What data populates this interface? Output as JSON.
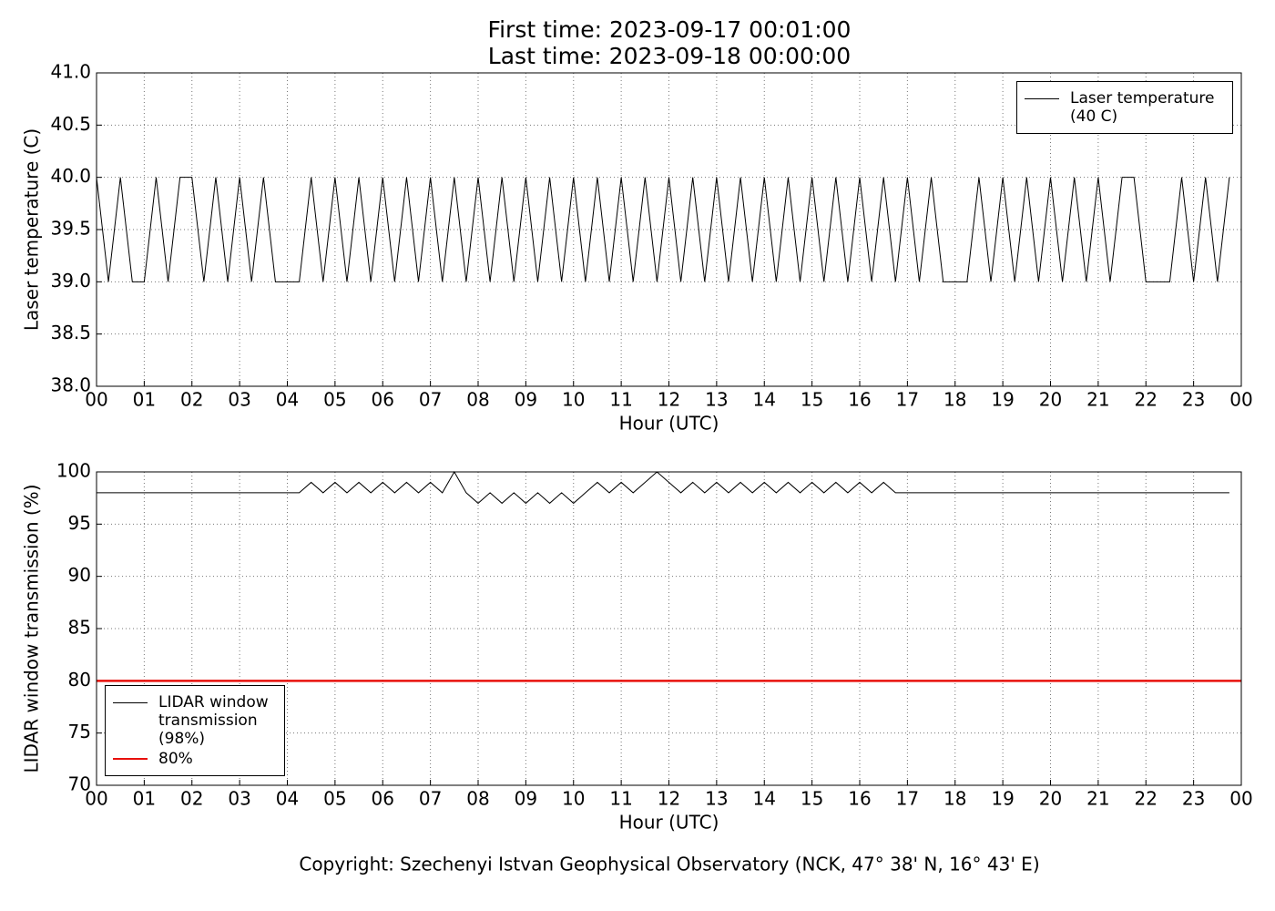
{
  "chart_data": [
    {
      "type": "line",
      "title": "First time: 2023-09-17 00:01:00",
      "subtitle": "Last time: 2023-09-18 00:00:00",
      "x_label": "Hour (UTC)",
      "y_label": "Laser temperature (C)",
      "grid": true,
      "legend": "upper right",
      "xlim": [
        0,
        24
      ],
      "xticks": [
        {
          "value": 0,
          "label": "00"
        },
        {
          "value": 1,
          "label": "01"
        },
        {
          "value": 2,
          "label": "02"
        },
        {
          "value": 3,
          "label": "03"
        },
        {
          "value": 4,
          "label": "04"
        },
        {
          "value": 5,
          "label": "05"
        },
        {
          "value": 6,
          "label": "06"
        },
        {
          "value": 7,
          "label": "07"
        },
        {
          "value": 8,
          "label": "08"
        },
        {
          "value": 9,
          "label": "09"
        },
        {
          "value": 10,
          "label": "10"
        },
        {
          "value": 11,
          "label": "11"
        },
        {
          "value": 12,
          "label": "12"
        },
        {
          "value": 13,
          "label": "13"
        },
        {
          "value": 14,
          "label": "14"
        },
        {
          "value": 15,
          "label": "15"
        },
        {
          "value": 16,
          "label": "16"
        },
        {
          "value": 17,
          "label": "17"
        },
        {
          "value": 18,
          "label": "18"
        },
        {
          "value": 19,
          "label": "19"
        },
        {
          "value": 20,
          "label": "20"
        },
        {
          "value": 21,
          "label": "21"
        },
        {
          "value": 22,
          "label": "22"
        },
        {
          "value": 23,
          "label": "23"
        },
        {
          "value": 24,
          "label": "00"
        }
      ],
      "ylim": [
        38,
        41
      ],
      "yticks": [
        {
          "value": 38,
          "label": "38.0"
        },
        {
          "value": 38.5,
          "label": "38.5"
        },
        {
          "value": 39,
          "label": "39.0"
        },
        {
          "value": 39.5,
          "label": "39.5"
        },
        {
          "value": 40,
          "label": "40.0"
        },
        {
          "value": 40.5,
          "label": "40.5"
        },
        {
          "value": 41,
          "label": "41.0"
        }
      ],
      "x": [
        0,
        0.25,
        0.5,
        0.75,
        1,
        1.25,
        1.5,
        1.75,
        2,
        2.25,
        2.5,
        2.75,
        3,
        3.25,
        3.5,
        3.75,
        4,
        4.25,
        4.5,
        4.75,
        5,
        5.25,
        5.5,
        5.75,
        6,
        6.25,
        6.5,
        6.75,
        7,
        7.25,
        7.5,
        7.75,
        8,
        8.25,
        8.5,
        8.75,
        9,
        9.25,
        9.5,
        9.75,
        10,
        10.25,
        10.5,
        10.75,
        11,
        11.25,
        11.5,
        11.75,
        12,
        12.25,
        12.5,
        12.75,
        13,
        13.25,
        13.5,
        13.75,
        14,
        14.25,
        14.5,
        14.75,
        15,
        15.25,
        15.5,
        15.75,
        16,
        16.25,
        16.5,
        16.75,
        17,
        17.25,
        17.5,
        17.75,
        18,
        18.25,
        18.5,
        18.75,
        19,
        19.25,
        19.5,
        19.75,
        20,
        20.25,
        20.5,
        20.75,
        21,
        21.25,
        21.5,
        21.75,
        22,
        22.25,
        22.5,
        22.75,
        23,
        23.25,
        23.5,
        23.75
      ],
      "series": [
        {
          "name": "Laser temperature (40 C)",
          "color": "#000000",
          "values": [
            40,
            39,
            40,
            39,
            39,
            40,
            39,
            40,
            40,
            39,
            40,
            39,
            40,
            39,
            40,
            39,
            39,
            39,
            40,
            39,
            40,
            39,
            40,
            39,
            40,
            39,
            40,
            39,
            40,
            39,
            40,
            39,
            40,
            39,
            40,
            39,
            40,
            39,
            40,
            39,
            40,
            39,
            40,
            39,
            40,
            39,
            40,
            39,
            40,
            39,
            40,
            39,
            40,
            39,
            40,
            39,
            40,
            39,
            40,
            39,
            40,
            39,
            40,
            39,
            40,
            39,
            40,
            39,
            40,
            39,
            40,
            39,
            39,
            39,
            40,
            39,
            40,
            39,
            40,
            39,
            40,
            39,
            40,
            39,
            40,
            39,
            40,
            40,
            39,
            39,
            39,
            40,
            39,
            40,
            39,
            40
          ]
        }
      ]
    },
    {
      "type": "line",
      "x_label": "Hour (UTC)",
      "y_label": "LIDAR window transmission (%)",
      "grid": true,
      "legend": "lower left",
      "xlim": [
        0,
        24
      ],
      "xticks": [
        {
          "value": 0,
          "label": "00"
        },
        {
          "value": 1,
          "label": "01"
        },
        {
          "value": 2,
          "label": "02"
        },
        {
          "value": 3,
          "label": "03"
        },
        {
          "value": 4,
          "label": "04"
        },
        {
          "value": 5,
          "label": "05"
        },
        {
          "value": 6,
          "label": "06"
        },
        {
          "value": 7,
          "label": "07"
        },
        {
          "value": 8,
          "label": "08"
        },
        {
          "value": 9,
          "label": "09"
        },
        {
          "value": 10,
          "label": "10"
        },
        {
          "value": 11,
          "label": "11"
        },
        {
          "value": 12,
          "label": "12"
        },
        {
          "value": 13,
          "label": "13"
        },
        {
          "value": 14,
          "label": "14"
        },
        {
          "value": 15,
          "label": "15"
        },
        {
          "value": 16,
          "label": "16"
        },
        {
          "value": 17,
          "label": "17"
        },
        {
          "value": 18,
          "label": "18"
        },
        {
          "value": 19,
          "label": "19"
        },
        {
          "value": 20,
          "label": "20"
        },
        {
          "value": 21,
          "label": "21"
        },
        {
          "value": 22,
          "label": "22"
        },
        {
          "value": 23,
          "label": "23"
        },
        {
          "value": 24,
          "label": "00"
        }
      ],
      "ylim": [
        70,
        100
      ],
      "yticks": [
        70,
        75,
        80,
        85,
        90,
        95,
        100
      ],
      "x": [
        0,
        0.25,
        0.5,
        0.75,
        1,
        1.25,
        1.5,
        1.75,
        2,
        2.25,
        2.5,
        2.75,
        3,
        3.25,
        3.5,
        3.75,
        4,
        4.25,
        4.5,
        4.75,
        5,
        5.25,
        5.5,
        5.75,
        6,
        6.25,
        6.5,
        6.75,
        7,
        7.25,
        7.5,
        7.75,
        8,
        8.25,
        8.5,
        8.75,
        9,
        9.25,
        9.5,
        9.75,
        10,
        10.25,
        10.5,
        10.75,
        11,
        11.25,
        11.5,
        11.75,
        12,
        12.25,
        12.5,
        12.75,
        13,
        13.25,
        13.5,
        13.75,
        14,
        14.25,
        14.5,
        14.75,
        15,
        15.25,
        15.5,
        15.75,
        16,
        16.25,
        16.5,
        16.75,
        17,
        17.25,
        17.5,
        17.75,
        18,
        18.25,
        18.5,
        18.75,
        19,
        19.25,
        19.5,
        19.75,
        20,
        20.25,
        20.5,
        20.75,
        21,
        21.25,
        21.5,
        21.75,
        22,
        22.25,
        22.5,
        22.75,
        23,
        23.25,
        23.5,
        23.75
      ],
      "series": [
        {
          "name": "LIDAR window transmission (98%)",
          "color": "#000000",
          "values": [
            98,
            98,
            98,
            98,
            98,
            98,
            98,
            98,
            98,
            98,
            98,
            98,
            98,
            98,
            98,
            98,
            98,
            98,
            99,
            98,
            99,
            98,
            99,
            98,
            99,
            98,
            99,
            98,
            99,
            98,
            100,
            98,
            97,
            98,
            97,
            98,
            97,
            98,
            97,
            98,
            97,
            98,
            99,
            98,
            99,
            98,
            99,
            100,
            99,
            98,
            99,
            98,
            99,
            98,
            99,
            98,
            99,
            98,
            99,
            98,
            99,
            98,
            99,
            98,
            99,
            98,
            99,
            98,
            98,
            98,
            98,
            98,
            98,
            98,
            98,
            98,
            98,
            98,
            98,
            98,
            98,
            98,
            98,
            98,
            98,
            98,
            98,
            98,
            98,
            98,
            98,
            98,
            98,
            98,
            98,
            98
          ]
        },
        {
          "name": "80%",
          "color": "#e8100c",
          "width": 2.5,
          "x": [
            0,
            24
          ],
          "values": [
            80,
            80
          ]
        }
      ]
    }
  ],
  "footer": "Copyright: Szechenyi Istvan Geophysical Observatory (NCK, 47° 38' N, 16° 43' E)"
}
